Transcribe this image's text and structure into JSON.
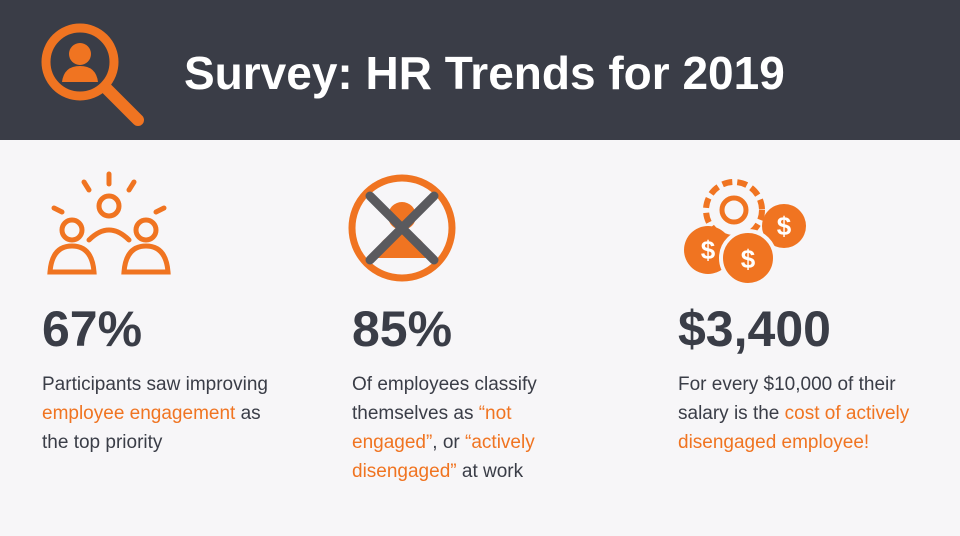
{
  "header": {
    "title": "Survey: HR Trends for 2019"
  },
  "cards": [
    {
      "stat": "67%",
      "description": [
        {
          "text": "Participants saw improving ",
          "highlight": false
        },
        {
          "text": "employee engagement",
          "highlight": true
        },
        {
          "text": " as the top priority",
          "highlight": false
        }
      ]
    },
    {
      "stat": "85%",
      "description": [
        {
          "text": "Of employees classify themselves as ",
          "highlight": false
        },
        {
          "text": "“not engaged”",
          "highlight": true
        },
        {
          "text": ", or ",
          "highlight": false
        },
        {
          "text": "“actively disengaged”",
          "highlight": true
        },
        {
          "text": " at work",
          "highlight": false
        }
      ]
    },
    {
      "stat": "$3,400",
      "description": [
        {
          "text": "For every $10,000 of their salary is the ",
          "highlight": false
        },
        {
          "text": "cost of actively disengaged employee!",
          "highlight": true
        }
      ]
    }
  ]
}
